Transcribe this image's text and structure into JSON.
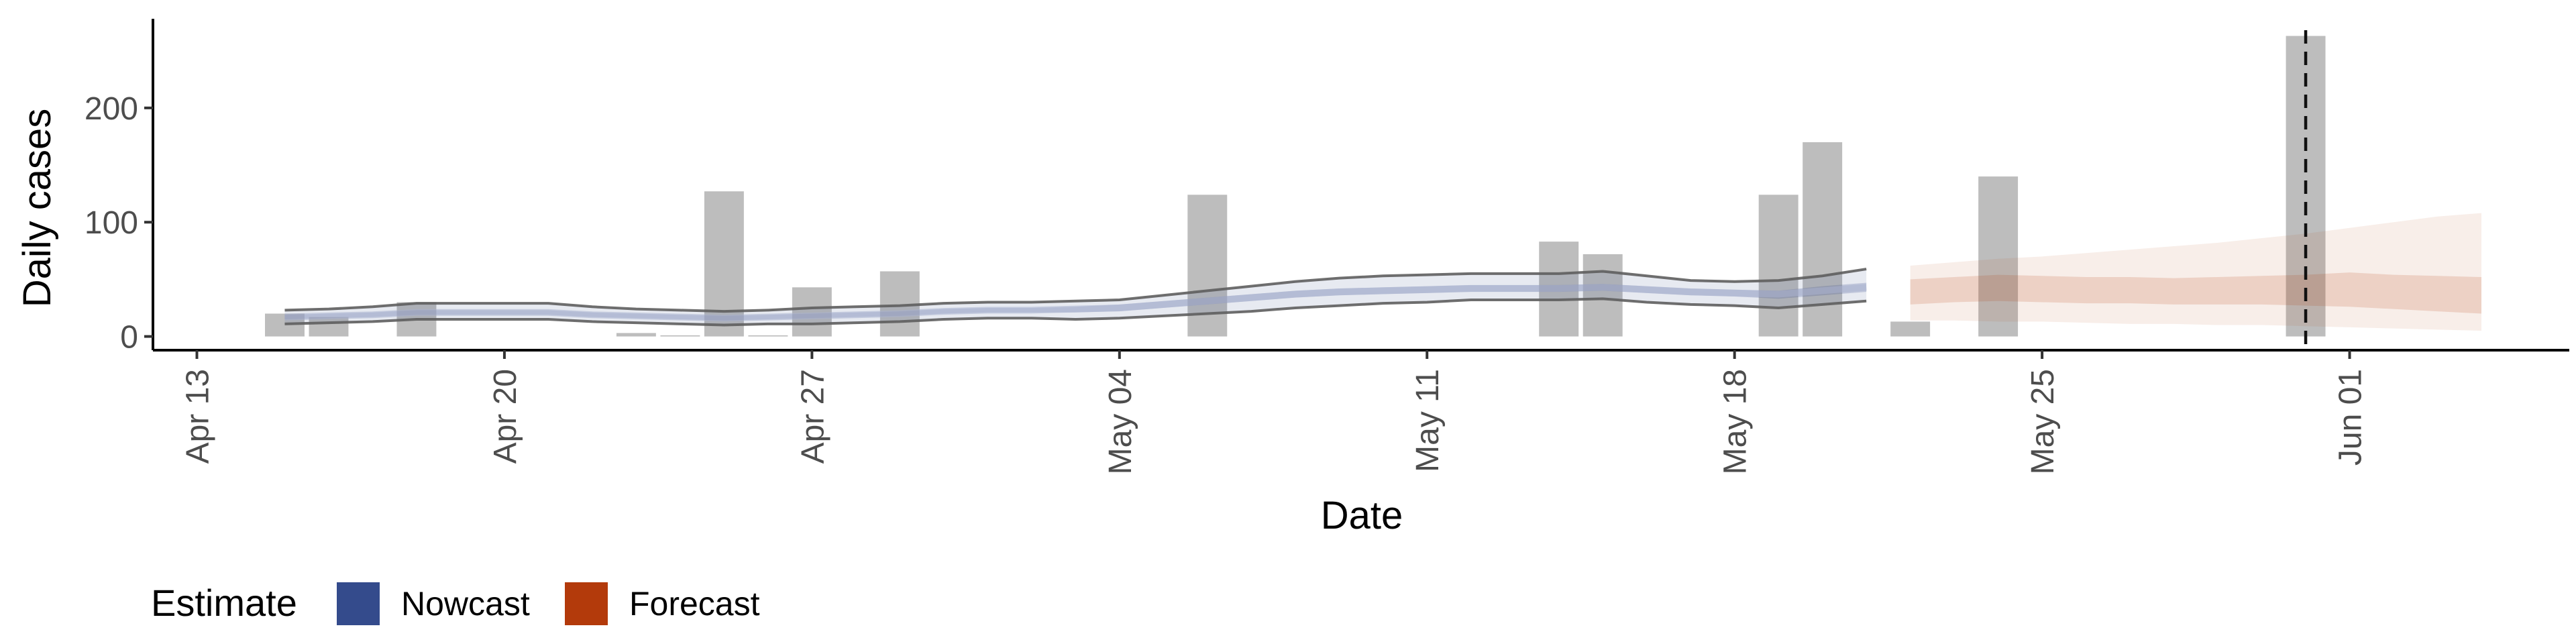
{
  "chart_data": {
    "type": "bar",
    "xlabel": "Date",
    "ylabel": "Daily cases",
    "x_ticks": [
      {
        "date": "2020-04-13",
        "label": "Apr 13"
      },
      {
        "date": "2020-04-20",
        "label": "Apr 20"
      },
      {
        "date": "2020-04-27",
        "label": "Apr 27"
      },
      {
        "date": "2020-05-04",
        "label": "May 04"
      },
      {
        "date": "2020-05-11",
        "label": "May 11"
      },
      {
        "date": "2020-05-18",
        "label": "May 18"
      },
      {
        "date": "2020-05-25",
        "label": "May 25"
      },
      {
        "date": "2020-06-01",
        "label": "Jun 01"
      }
    ],
    "y_ticks": [
      {
        "value": 0,
        "label": "0"
      },
      {
        "value": 100,
        "label": "100"
      },
      {
        "value": 200,
        "label": "200"
      }
    ],
    "xlim": [
      "2020-04-12",
      "2020-06-06"
    ],
    "ylim": [
      -12,
      278
    ],
    "grid": false,
    "legend_position": "bottom-left",
    "bars": {
      "color": "#bdbdbd",
      "points": [
        {
          "date": "2020-04-15",
          "value": 20
        },
        {
          "date": "2020-04-16",
          "value": 17
        },
        {
          "date": "2020-04-18",
          "value": 30
        },
        {
          "date": "2020-04-23",
          "value": 3
        },
        {
          "date": "2020-04-24",
          "value": 1
        },
        {
          "date": "2020-04-25",
          "value": 127
        },
        {
          "date": "2020-04-26",
          "value": 1
        },
        {
          "date": "2020-04-27",
          "value": 43
        },
        {
          "date": "2020-04-29",
          "value": 57
        },
        {
          "date": "2020-05-06",
          "value": 124
        },
        {
          "date": "2020-05-14",
          "value": 83
        },
        {
          "date": "2020-05-15",
          "value": 72
        },
        {
          "date": "2020-05-19",
          "value": 124
        },
        {
          "date": "2020-05-20",
          "value": 170
        },
        {
          "date": "2020-05-22",
          "value": 13
        },
        {
          "date": "2020-05-24",
          "value": 140
        },
        {
          "date": "2020-05-31",
          "value": 263
        }
      ]
    },
    "nowcast": {
      "color": "#3a4f8c",
      "dates": [
        "2020-04-15",
        "2020-04-16",
        "2020-04-17",
        "2020-04-18",
        "2020-04-19",
        "2020-04-20",
        "2020-04-21",
        "2020-04-22",
        "2020-04-23",
        "2020-04-24",
        "2020-04-25",
        "2020-04-26",
        "2020-04-27",
        "2020-04-28",
        "2020-04-29",
        "2020-04-30",
        "2020-05-01",
        "2020-05-02",
        "2020-05-03",
        "2020-05-04",
        "2020-05-05",
        "2020-05-06",
        "2020-05-07",
        "2020-05-08",
        "2020-05-09",
        "2020-05-10",
        "2020-05-11",
        "2020-05-12",
        "2020-05-13",
        "2020-05-14",
        "2020-05-15",
        "2020-05-16",
        "2020-05-17",
        "2020-05-18",
        "2020-05-19",
        "2020-05-20",
        "2020-05-21"
      ],
      "median": [
        17,
        18,
        19,
        21,
        21,
        21,
        21,
        19,
        18,
        17,
        16,
        17,
        18,
        19,
        20,
        22,
        23,
        23,
        24,
        25,
        28,
        31,
        34,
        37,
        39,
        40,
        41,
        42,
        42,
        42,
        43,
        41,
        39,
        38,
        37,
        40,
        43
      ],
      "lower_90": [
        11,
        12,
        13,
        15,
        15,
        15,
        15,
        13,
        12,
        11,
        10,
        11,
        11,
        12,
        13,
        15,
        16,
        16,
        15,
        16,
        18,
        20,
        22,
        25,
        27,
        29,
        30,
        32,
        32,
        32,
        33,
        30,
        28,
        27,
        25,
        28,
        31
      ],
      "upper_90": [
        23,
        24,
        26,
        29,
        29,
        29,
        29,
        26,
        24,
        23,
        22,
        23,
        25,
        26,
        27,
        29,
        30,
        30,
        31,
        32,
        36,
        40,
        44,
        48,
        51,
        53,
        54,
        55,
        55,
        55,
        57,
        53,
        49,
        48,
        49,
        53,
        59
      ],
      "lower_50": [
        15,
        16,
        17,
        19,
        19,
        19,
        19,
        17,
        16,
        15,
        14,
        15,
        16,
        17,
        18,
        20,
        21,
        21,
        21,
        22,
        25,
        28,
        31,
        34,
        36,
        37,
        38,
        39,
        39,
        39,
        40,
        38,
        36,
        35,
        33,
        36,
        39
      ],
      "upper_50": [
        19,
        20,
        21,
        23,
        23,
        23,
        23,
        21,
        20,
        19,
        18,
        19,
        20,
        21,
        22,
        24,
        25,
        25,
        26,
        28,
        31,
        34,
        37,
        40,
        42,
        43,
        44,
        45,
        45,
        45,
        46,
        44,
        42,
        41,
        40,
        44,
        47
      ]
    },
    "forecast": {
      "color": "#b5400f",
      "dates": [
        "2020-05-22",
        "2020-05-23",
        "2020-05-24",
        "2020-05-25",
        "2020-05-26",
        "2020-05-27",
        "2020-05-28",
        "2020-05-29",
        "2020-05-30",
        "2020-05-31",
        "2020-06-01",
        "2020-06-02",
        "2020-06-03",
        "2020-06-04"
      ],
      "lower_90": [
        14,
        14,
        13,
        13,
        12,
        11,
        11,
        10,
        10,
        9,
        8,
        7,
        6,
        5
      ],
      "upper_90": [
        62,
        65,
        68,
        70,
        73,
        76,
        79,
        82,
        86,
        90,
        95,
        100,
        105,
        108
      ],
      "lower_50": [
        28,
        30,
        31,
        30,
        29,
        29,
        28,
        28,
        28,
        27,
        26,
        24,
        22,
        20
      ],
      "upper_50": [
        50,
        52,
        54,
        53,
        52,
        52,
        51,
        52,
        53,
        54,
        56,
        54,
        53,
        52
      ]
    },
    "reference_line": {
      "date": "2020-05-31",
      "style": "dashed"
    },
    "legend": {
      "title": "Estimate",
      "items": [
        {
          "label": "Nowcast",
          "color": "#344b8c"
        },
        {
          "label": "Forecast",
          "color": "#b33a0b"
        }
      ]
    }
  }
}
